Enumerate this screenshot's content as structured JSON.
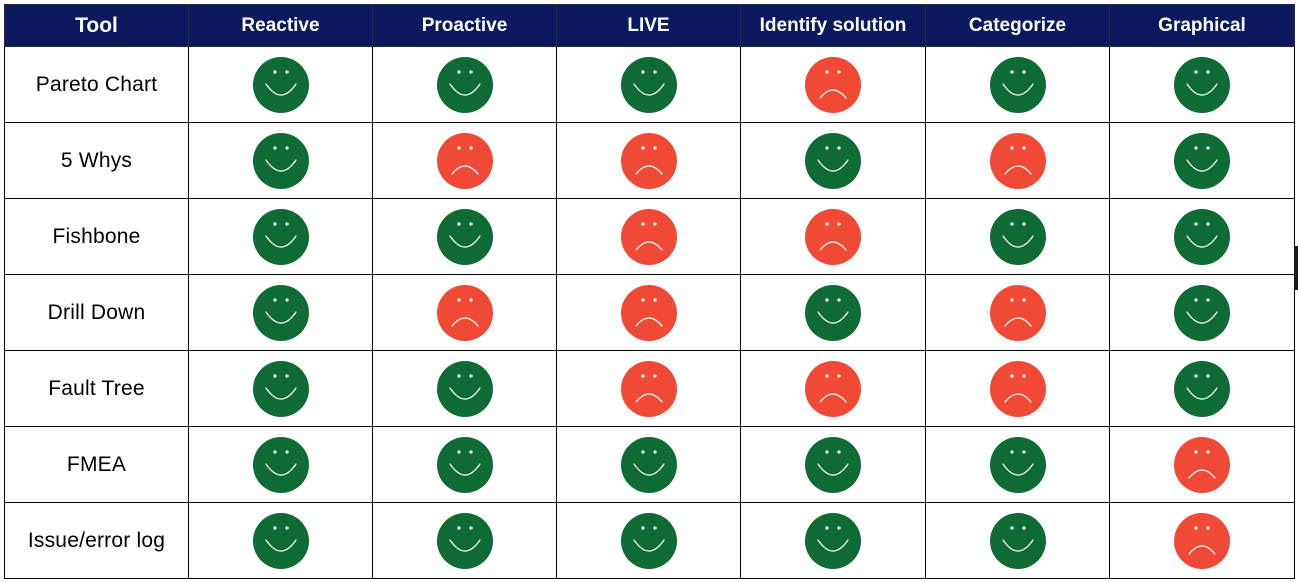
{
  "table": {
    "headers": [
      "Tool",
      "Reactive",
      "Proactive",
      "LIVE",
      "Identify solution",
      "Categorize",
      "Graphical"
    ],
    "rows": [
      {
        "tool": "Pareto Chart",
        "ratings": [
          "happy",
          "happy",
          "happy",
          "sad",
          "happy",
          "happy"
        ]
      },
      {
        "tool": "5 Whys",
        "ratings": [
          "happy",
          "sad",
          "sad",
          "happy",
          "sad",
          "happy"
        ]
      },
      {
        "tool": "Fishbone",
        "ratings": [
          "happy",
          "happy",
          "sad",
          "sad",
          "happy",
          "happy"
        ]
      },
      {
        "tool": "Drill Down",
        "ratings": [
          "happy",
          "sad",
          "sad",
          "happy",
          "sad",
          "happy"
        ]
      },
      {
        "tool": "Fault Tree",
        "ratings": [
          "happy",
          "happy",
          "sad",
          "sad",
          "sad",
          "happy"
        ]
      },
      {
        "tool": "FMEA",
        "ratings": [
          "happy",
          "happy",
          "happy",
          "happy",
          "happy",
          "sad"
        ]
      },
      {
        "tool": "Issue/error log",
        "ratings": [
          "happy",
          "happy",
          "happy",
          "happy",
          "happy",
          "sad"
        ]
      }
    ]
  },
  "icons": {
    "happy": "smiley-face-icon",
    "sad": "frowning-face-icon"
  },
  "colors": {
    "header_bg": "#0b1a5e",
    "happy": "#0d6b33",
    "sad": "#f04a36"
  }
}
